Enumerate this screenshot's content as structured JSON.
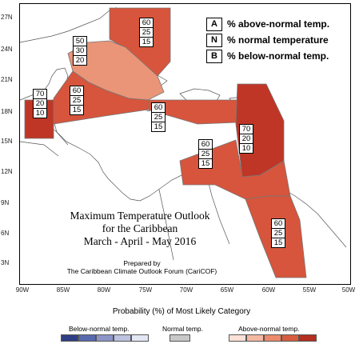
{
  "map": {
    "latitude_labels": [
      "27N",
      "24N",
      "21N",
      "18N",
      "15N",
      "12N",
      "9N",
      "6N",
      "3N"
    ],
    "longitude_labels": [
      "90W",
      "85W",
      "80W",
      "75W",
      "70W",
      "65W",
      "60W",
      "55W",
      "50W"
    ],
    "title_lines": [
      "Maximum Temperature Outlook",
      "for the Caribbean",
      "March - April - May 2016"
    ],
    "prepared_by_lines": [
      "Prepared by",
      "The Caribbean Climate Outlook Forum (CariCOF)"
    ]
  },
  "key": [
    {
      "letter": "A",
      "text": "% above-normal temp."
    },
    {
      "letter": "N",
      "text": "% normal temperature"
    },
    {
      "letter": "B",
      "text": "% below-normal temp."
    }
  ],
  "regions": [
    {
      "name": "bahamas",
      "probs": [
        "60",
        "25",
        "15"
      ],
      "color": "#d6553c"
    },
    {
      "name": "cuba",
      "probs": [
        "50",
        "30",
        "20"
      ],
      "color": "#ea9478"
    },
    {
      "name": "belize",
      "probs": [
        "70",
        "20",
        "10"
      ],
      "color": "#bf3626"
    },
    {
      "name": "caribbean-west",
      "probs": [
        "60",
        "25",
        "15"
      ],
      "color": "#d6553c"
    },
    {
      "name": "puerto-rico-hispaniola",
      "probs": [
        "60",
        "25",
        "15"
      ],
      "color": "#d6553c"
    },
    {
      "name": "leeward-islands",
      "probs": [
        "70",
        "20",
        "10"
      ],
      "color": "#bf3626"
    },
    {
      "name": "southern-caribbean",
      "probs": [
        "60",
        "25",
        "15"
      ],
      "color": "#d6553c"
    },
    {
      "name": "guianas",
      "probs": [
        "60",
        "25",
        "15"
      ],
      "color": "#d6553c"
    }
  ],
  "legend": {
    "title": "Probability (%) of Most Likely Category",
    "below_label": "Below-normal temp.",
    "normal_label": "Normal temp.",
    "above_label": "Above-normal temp.",
    "below_colors": [
      "#2e3f86",
      "#5a69ad",
      "#8c95c6",
      "#bcc2e0",
      "#e3e6f3"
    ],
    "normal_color": "#c8c8c8",
    "above_colors": [
      "#fbe1d6",
      "#f5b8a1",
      "#ec8a6b",
      "#d85d40",
      "#b32f1f"
    ]
  }
}
